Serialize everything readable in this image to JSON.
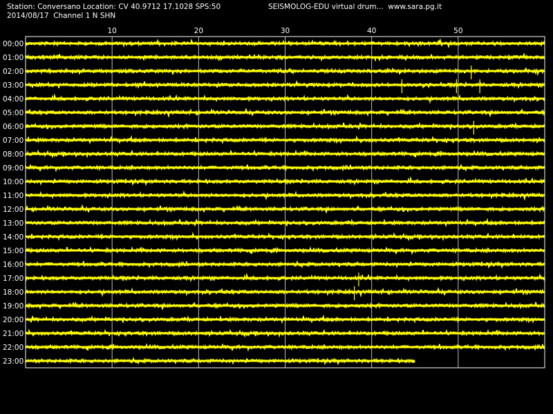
{
  "header": {
    "station_line": "Station: Conversano Location: CV 40.9712 17.1028 SPS:50",
    "date_line": "2014/08/17  Channel 1 N SHN",
    "title": "SEISMOLOG-EDU virtual drum...  www.sara.pg.it"
  },
  "colors": {
    "background": "#000000",
    "trace": "#ffff00",
    "frame": "#ffffff",
    "grid": "#bfbfbf"
  },
  "chart_data": {
    "type": "line",
    "title": "SEISMOLOG-EDU virtual drum...  www.sara.pg.it",
    "xlabel": "",
    "ylabel": "",
    "x_unit": "minutes",
    "xlim": [
      0,
      60
    ],
    "x_ticks": [
      10,
      20,
      30,
      40,
      50
    ],
    "grid": true,
    "rows": [
      "00:00",
      "01:00",
      "02:00",
      "03:00",
      "04:00",
      "05:00",
      "06:00",
      "07:00",
      "08:00",
      "09:00",
      "10:00",
      "11:00",
      "12:00",
      "13:00",
      "14:00",
      "15:00",
      "16:00",
      "17:00",
      "18:00",
      "19:00",
      "20:00",
      "21:00",
      "22:00",
      "23:00"
    ],
    "row_end_minute": [
      60,
      60,
      60,
      60,
      60,
      60,
      60,
      60,
      60,
      60,
      60,
      60,
      60,
      60,
      60,
      60,
      60,
      60,
      60,
      60,
      60,
      60,
      60,
      45
    ],
    "spikes": [
      {
        "row": "02:00",
        "minute": 51.5
      },
      {
        "row": "03:00",
        "minute": 43.5
      },
      {
        "row": "03:00",
        "minute": 49.8
      },
      {
        "row": "03:00",
        "minute": 52.5
      },
      {
        "row": "06:00",
        "minute": 51.8
      },
      {
        "row": "17:00",
        "minute": 38.5
      },
      {
        "row": "18:00",
        "minute": 38.0
      }
    ]
  }
}
